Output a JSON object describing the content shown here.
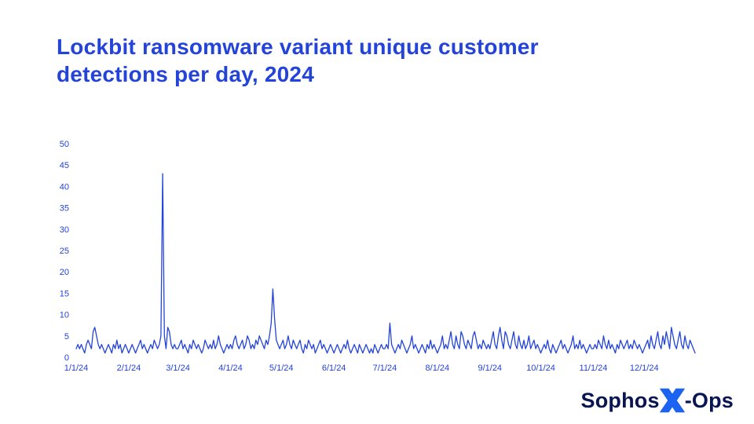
{
  "title": "Lockbit ransomware variant unique customer detections per day, 2024",
  "colors": {
    "accent": "#2343d9",
    "navy": "#071553",
    "logo_x": "#1b63f0",
    "background": "#ffffff"
  },
  "logo": {
    "brand": "Sophos",
    "x_icon": "X",
    "suffix": "-Ops"
  },
  "chart_data": {
    "type": "line",
    "title": "Lockbit ransomware variant unique customer detections per day, 2024",
    "xlabel": "",
    "ylabel": "",
    "grid": false,
    "legend": false,
    "ylim": [
      0,
      50
    ],
    "y_ticks": [
      0,
      5,
      10,
      15,
      20,
      25,
      30,
      35,
      40,
      45,
      50
    ],
    "x_tick_labels": [
      "1/1/24",
      "2/1/24",
      "3/1/24",
      "4/1/24",
      "5/1/24",
      "6/1/24",
      "7/1/24",
      "8/1/24",
      "9/1/24",
      "10/1/24",
      "11/1/24",
      "12/1/24"
    ],
    "x_tick_day_index": [
      0,
      31,
      60,
      91,
      121,
      152,
      182,
      213,
      244,
      274,
      305,
      335
    ],
    "x_unit": "day of 2024",
    "y_unit": "unique customer detections",
    "notable_points": [
      {
        "date": "2/21/24",
        "value": 43
      },
      {
        "date": "4/26/24",
        "value": 16
      }
    ],
    "values": [
      2,
      3,
      2,
      3,
      2,
      1,
      3,
      4,
      3,
      2,
      6,
      7,
      5,
      3,
      2,
      3,
      2,
      1,
      2,
      3,
      2,
      1,
      3,
      2,
      4,
      2,
      3,
      1,
      2,
      3,
      2,
      1,
      2,
      3,
      2,
      1,
      2,
      3,
      4,
      2,
      3,
      2,
      1,
      2,
      3,
      2,
      4,
      3,
      2,
      3,
      5,
      43,
      5,
      2,
      7,
      6,
      3,
      2,
      3,
      2,
      2,
      3,
      4,
      2,
      3,
      2,
      1,
      3,
      2,
      4,
      3,
      2,
      3,
      2,
      1,
      2,
      4,
      3,
      2,
      3,
      2,
      4,
      2,
      3,
      5,
      3,
      2,
      1,
      2,
      3,
      2,
      3,
      2,
      4,
      5,
      3,
      2,
      3,
      4,
      2,
      3,
      5,
      4,
      2,
      3,
      2,
      4,
      3,
      5,
      4,
      3,
      2,
      4,
      3,
      5,
      8,
      16,
      9,
      4,
      3,
      2,
      3,
      4,
      2,
      3,
      5,
      3,
      2,
      4,
      3,
      2,
      3,
      4,
      2,
      1,
      3,
      2,
      4,
      3,
      2,
      3,
      1,
      2,
      3,
      4,
      2,
      3,
      2,
      1,
      2,
      3,
      2,
      1,
      2,
      3,
      2,
      1,
      2,
      3,
      2,
      4,
      2,
      1,
      2,
      3,
      2,
      1,
      3,
      2,
      1,
      2,
      3,
      2,
      1,
      2,
      1,
      3,
      2,
      1,
      2,
      3,
      2,
      2,
      3,
      2,
      8,
      3,
      2,
      1,
      2,
      3,
      2,
      4,
      3,
      2,
      1,
      2,
      3,
      5,
      2,
      3,
      2,
      1,
      2,
      3,
      2,
      1,
      3,
      2,
      4,
      2,
      3,
      2,
      1,
      2,
      3,
      5,
      2,
      3,
      2,
      4,
      6,
      3,
      2,
      5,
      3,
      2,
      6,
      5,
      3,
      2,
      4,
      3,
      2,
      5,
      6,
      4,
      2,
      3,
      2,
      4,
      3,
      2,
      3,
      2,
      4,
      6,
      3,
      2,
      5,
      7,
      4,
      2,
      6,
      5,
      3,
      2,
      4,
      6,
      3,
      2,
      5,
      3,
      2,
      4,
      2,
      3,
      5,
      2,
      3,
      4,
      2,
      3,
      2,
      1,
      2,
      3,
      2,
      4,
      2,
      1,
      3,
      2,
      1,
      2,
      3,
      4,
      2,
      3,
      2,
      1,
      2,
      3,
      5,
      2,
      3,
      2,
      4,
      2,
      3,
      2,
      1,
      2,
      3,
      2,
      2,
      3,
      2,
      4,
      3,
      2,
      5,
      3,
      2,
      4,
      2,
      3,
      2,
      1,
      3,
      2,
      4,
      3,
      2,
      3,
      4,
      2,
      3,
      2,
      4,
      3,
      2,
      3,
      2,
      1,
      2,
      3,
      4,
      2,
      5,
      3,
      2,
      4,
      6,
      3,
      2,
      5,
      3,
      6,
      4,
      2,
      7,
      5,
      3,
      2,
      4,
      6,
      3,
      2,
      5,
      3,
      2,
      4,
      3,
      2,
      1
    ]
  }
}
